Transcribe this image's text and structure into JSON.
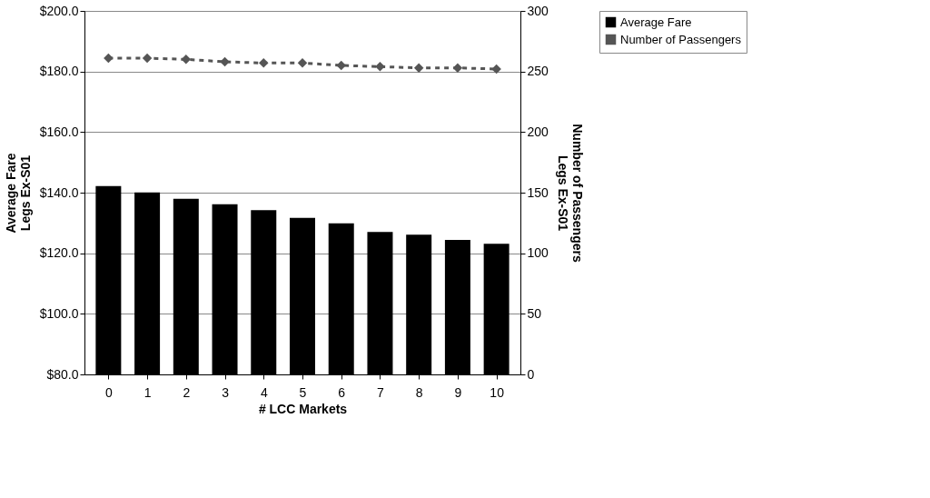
{
  "chart_data": {
    "type": "bar",
    "xlabel": "# LCC Markets",
    "ylabel": "Average Fare\nLegs Ex-S01",
    "y2label": "Number of Passengers\nLegs Ex-S01",
    "categories": [
      "0",
      "1",
      "2",
      "3",
      "4",
      "5",
      "6",
      "7",
      "8",
      "9",
      "10"
    ],
    "series": [
      {
        "name": "Average Fare",
        "color": "#000000",
        "values": [
          142.2,
          140.1,
          138.0,
          136.2,
          134.2,
          131.7,
          129.9,
          127.0,
          126.1,
          124.4,
          123.1
        ]
      },
      {
        "name": "Number of Passengers",
        "type": "line",
        "axis": "y2",
        "color": "#555555",
        "marker": "diamond",
        "line_style": "dashed",
        "values": [
          261,
          261,
          260,
          258,
          257,
          257,
          255,
          254,
          253,
          253,
          252
        ]
      }
    ],
    "ylim": [
      80,
      200
    ],
    "yticks": [
      {
        "value": 80,
        "label": "$80.0"
      },
      {
        "value": 100,
        "label": "$100.0"
      },
      {
        "value": 120,
        "label": "$120.0"
      },
      {
        "value": 140,
        "label": "$140.0"
      },
      {
        "value": 160,
        "label": "$160.0"
      },
      {
        "value": 180,
        "label": "$180.0"
      },
      {
        "value": 200,
        "label": "$200.0"
      }
    ],
    "y2lim": [
      0,
      300
    ],
    "y2ticks": [
      0,
      50,
      100,
      150,
      200,
      250,
      300
    ],
    "grid": "y",
    "legend": "right"
  }
}
